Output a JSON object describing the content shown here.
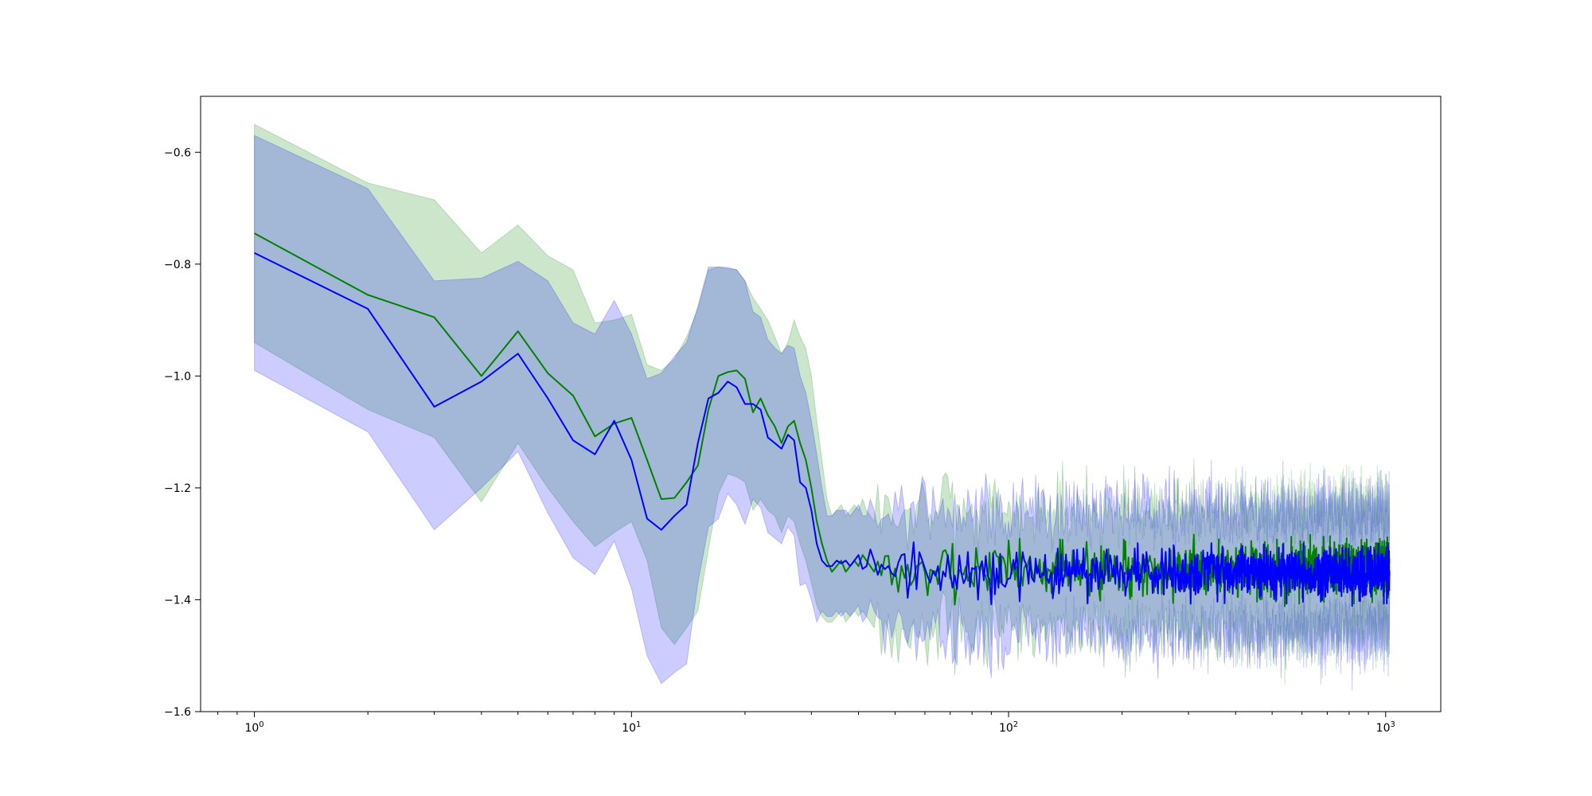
{
  "chart_data": {
    "type": "line",
    "title": "",
    "xlabel": "",
    "ylabel": "",
    "xscale": "log",
    "xlim": [
      0.72,
      1400
    ],
    "ylim": [
      -1.6,
      -0.5
    ],
    "grid": false,
    "legend": "none",
    "x_ticks": [
      {
        "value": 1,
        "label": "10",
        "sup": "0"
      },
      {
        "value": 10,
        "label": "10",
        "sup": "1"
      },
      {
        "value": 100,
        "label": "10",
        "sup": "2"
      },
      {
        "value": 1000,
        "label": "10",
        "sup": "3"
      }
    ],
    "y_ticks": [
      {
        "value": -0.6,
        "label": "−0.6"
      },
      {
        "value": -0.8,
        "label": "−0.8"
      },
      {
        "value": -1.0,
        "label": "−1.0"
      },
      {
        "value": -1.2,
        "label": "−1.2"
      },
      {
        "value": -1.4,
        "label": "−1.4"
      },
      {
        "value": -1.6,
        "label": "−1.6"
      }
    ],
    "tail_x_range": [
      45,
      1024
    ],
    "series": [
      {
        "color": "#008000",
        "x": [
          1,
          2,
          3,
          4,
          5,
          6,
          7,
          8,
          9,
          10,
          11,
          12,
          13,
          14,
          15,
          16,
          17,
          18,
          19,
          20,
          21,
          22,
          23,
          24,
          25,
          26,
          27,
          28,
          29,
          30,
          31,
          32,
          33,
          34,
          35,
          36,
          37,
          38,
          39,
          40,
          41,
          42,
          43,
          44
        ],
        "mean": [
          -0.745,
          -0.855,
          -0.895,
          -1.0,
          -0.92,
          -0.995,
          -1.035,
          -1.108,
          -1.085,
          -1.075,
          -1.15,
          -1.22,
          -1.218,
          -1.19,
          -1.16,
          -1.06,
          -1.0,
          -0.993,
          -0.99,
          -1.005,
          -1.065,
          -1.04,
          -1.07,
          -1.09,
          -1.12,
          -1.09,
          -1.08,
          -1.12,
          -1.15,
          -1.2,
          -1.26,
          -1.3,
          -1.33,
          -1.35,
          -1.34,
          -1.33,
          -1.35,
          -1.34,
          -1.33,
          -1.34,
          -1.32,
          -1.33,
          -1.34,
          -1.35
        ],
        "upper": [
          -0.55,
          -0.655,
          -0.685,
          -0.78,
          -0.73,
          -0.785,
          -0.81,
          -0.905,
          -0.9,
          -0.89,
          -0.98,
          -0.99,
          -0.97,
          -0.93,
          -0.88,
          -0.81,
          -0.805,
          -0.808,
          -0.81,
          -0.83,
          -0.86,
          -0.88,
          -0.9,
          -0.93,
          -0.96,
          -0.94,
          -0.9,
          -0.93,
          -0.95,
          -1.0,
          -1.08,
          -1.15,
          -1.22,
          -1.25,
          -1.24,
          -1.23,
          -1.25,
          -1.24,
          -1.23,
          -1.24,
          -1.22,
          -1.24,
          -1.25,
          -1.26
        ],
        "lower": [
          -0.94,
          -1.06,
          -1.11,
          -1.225,
          -1.12,
          -1.2,
          -1.26,
          -1.305,
          -1.28,
          -1.26,
          -1.33,
          -1.45,
          -1.48,
          -1.45,
          -1.42,
          -1.31,
          -1.21,
          -1.175,
          -1.18,
          -1.19,
          -1.24,
          -1.22,
          -1.24,
          -1.25,
          -1.28,
          -1.25,
          -1.26,
          -1.3,
          -1.33,
          -1.37,
          -1.41,
          -1.43,
          -1.44,
          -1.44,
          -1.43,
          -1.42,
          -1.44,
          -1.43,
          -1.42,
          -1.43,
          -1.42,
          -1.43,
          -1.44,
          -1.45
        ],
        "tail_mean": -1.345,
        "tail_spread": 0.085,
        "tail_noise": 0.025,
        "tail_seed": 7
      },
      {
        "color": "#0000ff",
        "x": [
          1,
          2,
          3,
          4,
          5,
          6,
          7,
          8,
          9,
          10,
          11,
          12,
          13,
          14,
          15,
          16,
          17,
          18,
          19,
          20,
          21,
          22,
          23,
          24,
          25,
          26,
          27,
          28,
          29,
          30,
          31,
          32,
          33,
          34,
          35,
          36,
          37,
          38,
          39,
          40,
          41,
          42,
          43,
          44
        ],
        "mean": [
          -0.78,
          -0.88,
          -1.055,
          -1.01,
          -0.96,
          -1.04,
          -1.115,
          -1.14,
          -1.08,
          -1.15,
          -1.255,
          -1.275,
          -1.25,
          -1.23,
          -1.12,
          -1.04,
          -1.03,
          -1.01,
          -1.02,
          -1.05,
          -1.05,
          -1.06,
          -1.11,
          -1.12,
          -1.13,
          -1.105,
          -1.115,
          -1.19,
          -1.2,
          -1.24,
          -1.3,
          -1.33,
          -1.34,
          -1.34,
          -1.33,
          -1.335,
          -1.33,
          -1.34,
          -1.33,
          -1.32,
          -1.345,
          -1.34,
          -1.31,
          -1.33
        ],
        "upper": [
          -0.57,
          -0.665,
          -0.83,
          -0.825,
          -0.795,
          -0.83,
          -0.905,
          -0.925,
          -0.865,
          -0.925,
          -1.005,
          -0.995,
          -0.965,
          -0.94,
          -0.875,
          -0.805,
          -0.805,
          -0.806,
          -0.81,
          -0.83,
          -0.885,
          -0.895,
          -0.935,
          -0.95,
          -0.96,
          -0.945,
          -0.95,
          -1.0,
          -1.03,
          -1.08,
          -1.14,
          -1.2,
          -1.25,
          -1.25,
          -1.24,
          -1.24,
          -1.24,
          -1.25,
          -1.24,
          -1.23,
          -1.25,
          -1.25,
          -1.22,
          -1.24
        ],
        "lower": [
          -0.99,
          -1.1,
          -1.275,
          -1.2,
          -1.135,
          -1.245,
          -1.325,
          -1.355,
          -1.295,
          -1.38,
          -1.5,
          -1.55,
          -1.53,
          -1.515,
          -1.37,
          -1.27,
          -1.255,
          -1.21,
          -1.23,
          -1.265,
          -1.22,
          -1.235,
          -1.28,
          -1.29,
          -1.3,
          -1.27,
          -1.285,
          -1.375,
          -1.37,
          -1.4,
          -1.44,
          -1.42,
          -1.43,
          -1.43,
          -1.42,
          -1.43,
          -1.42,
          -1.43,
          -1.42,
          -1.41,
          -1.44,
          -1.43,
          -1.4,
          -1.42
        ],
        "tail_mean": -1.352,
        "tail_spread": 0.09,
        "tail_noise": 0.022,
        "tail_seed": 13
      }
    ]
  }
}
